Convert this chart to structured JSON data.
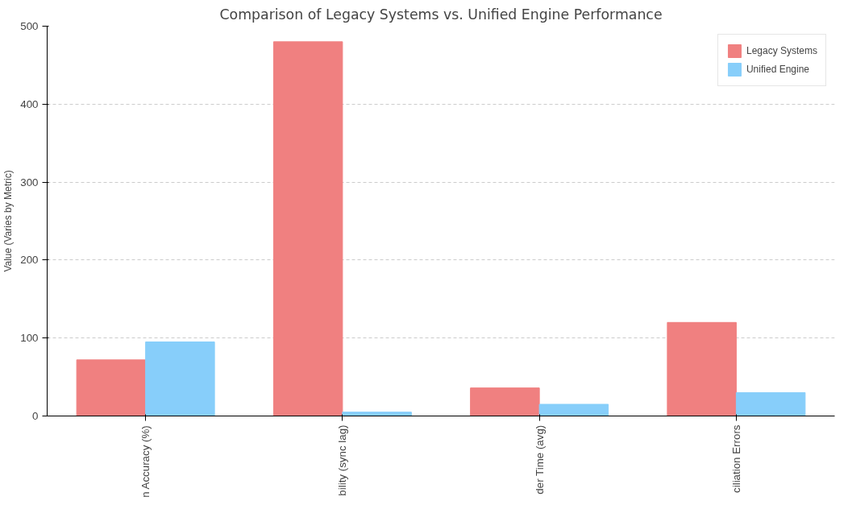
{
  "chart_data": {
    "type": "bar",
    "title": "Comparison of Legacy Systems vs. Unified Engine Performance",
    "ylabel": "Value (Varies by Metric)",
    "categories": [
      "n Accuracy (%)",
      "bility (sync lag)",
      "der Time (avg)",
      "ciliation Errors"
    ],
    "series": [
      {
        "name": "Legacy Systems",
        "color": "#f08080",
        "values": [
          72,
          480,
          36,
          120
        ]
      },
      {
        "name": "Unified Engine",
        "color": "#87cefa",
        "values": [
          95,
          5,
          15,
          30
        ]
      }
    ],
    "ylim": [
      0,
      500
    ],
    "yticks": [
      0,
      100,
      200,
      300,
      400,
      500
    ],
    "grid": "y",
    "legend": "top right"
  }
}
